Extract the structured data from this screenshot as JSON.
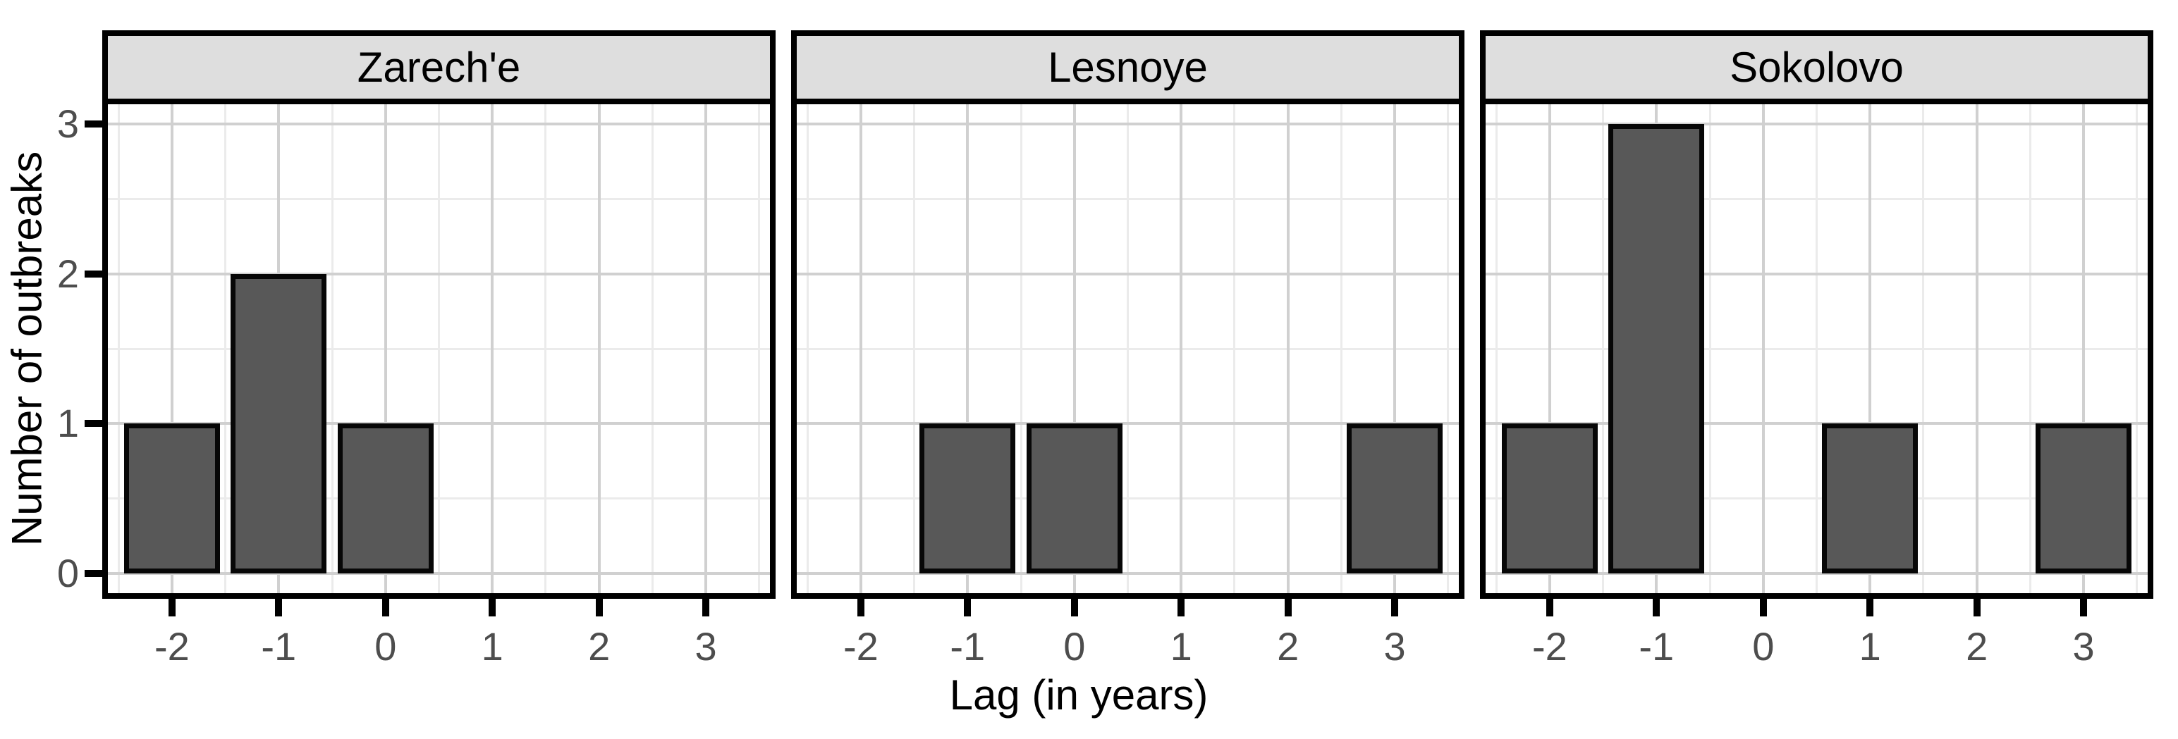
{
  "chart_data": {
    "type": "bar",
    "subtype": "faceted-histogram",
    "xlabel": "Lag (in years)",
    "ylabel": "Number of outbreaks",
    "facets": [
      {
        "title": "Zarech'e",
        "bars": [
          {
            "x": -2,
            "y": 1
          },
          {
            "x": -1,
            "y": 2
          },
          {
            "x": 0,
            "y": 1
          }
        ]
      },
      {
        "title": "Lesnoye",
        "bars": [
          {
            "x": -1,
            "y": 1
          },
          {
            "x": 0,
            "y": 1
          },
          {
            "x": 3,
            "y": 1
          }
        ]
      },
      {
        "title": "Sokolovo",
        "bars": [
          {
            "x": -2,
            "y": 1
          },
          {
            "x": -1,
            "y": 3
          },
          {
            "x": 1,
            "y": 1
          },
          {
            "x": 3,
            "y": 1
          }
        ]
      }
    ],
    "x_ticks": [
      -2,
      -1,
      0,
      1,
      2,
      3
    ],
    "y_ticks": [
      0,
      1,
      2,
      3
    ],
    "xlim": [
      -2.6,
      3.6
    ],
    "ylim": [
      -0.13,
      3.13
    ],
    "bar_width": 0.9,
    "grid": "major and minor, on",
    "legend": "none",
    "colors": {
      "bar_fill": "#585858",
      "bar_stroke": "#070707",
      "strip_background": "#dedede",
      "panel_background": "#ffffff",
      "panel_border": "#000000",
      "grid_major": "#d0d0d0",
      "grid_minor": "#ebebeb",
      "axis_text": "#4d4d4d",
      "axis_title": "#000000"
    }
  }
}
